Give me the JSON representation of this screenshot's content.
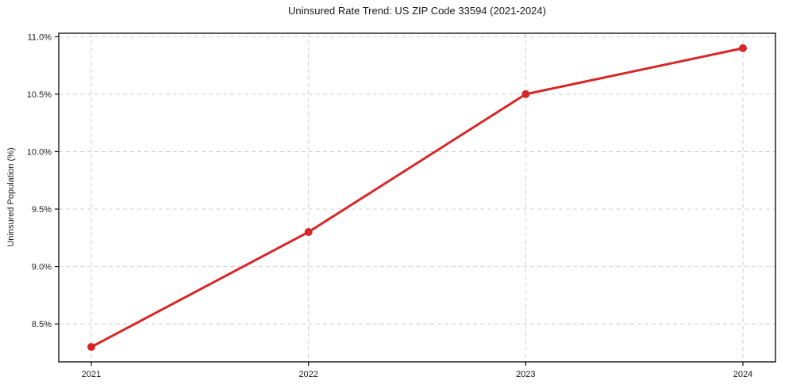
{
  "page": {
    "background_color": "#ffffff"
  },
  "chart_data": {
    "type": "line",
    "title": "Uninsured Rate Trend: US ZIP Code 33594 (2021-2024)",
    "xlabel": "",
    "ylabel": "Uninsured Population (%)",
    "x": [
      2021,
      2022,
      2023,
      2024
    ],
    "xtick_labels": [
      "2021",
      "2022",
      "2023",
      "2024"
    ],
    "series": [
      {
        "name": "Uninsured Rate",
        "values": [
          8.3,
          9.3,
          10.5,
          10.9
        ],
        "color": "#d62728",
        "line_width": 3,
        "marker": "circle",
        "marker_radius": 5
      }
    ],
    "ytick_values": [
      8.5,
      9.0,
      9.5,
      10.0,
      10.5,
      11.0
    ],
    "ytick_labels": [
      "8.5%",
      "9.0%",
      "9.5%",
      "10.0%",
      "10.5%",
      "11.0%"
    ],
    "xlim": [
      2020.85,
      2024.15
    ],
    "ylim": [
      8.17,
      11.03
    ],
    "grid": true,
    "grid_style": "dashed",
    "grid_color": "#cfcfcf",
    "frame_color": "#141414",
    "tick_color": "#141414",
    "legend": "none"
  }
}
